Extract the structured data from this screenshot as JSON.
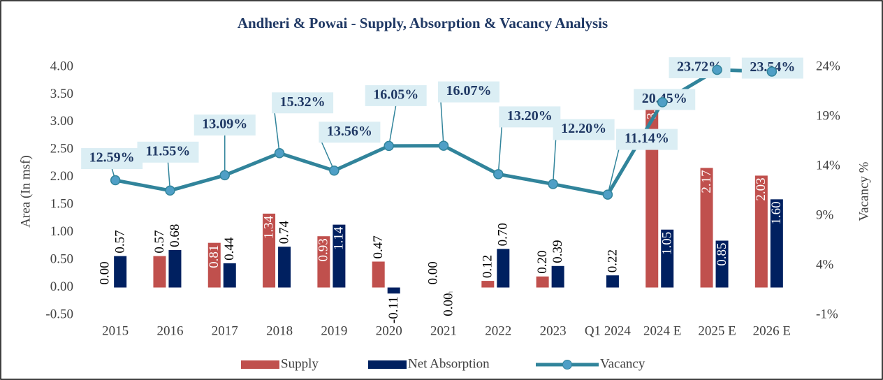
{
  "chart_data": {
    "type": "bar-line",
    "title": "Andheri & Powai - Supply, Absorption & Vacancy Analysis",
    "y_label": "Area (In msf)",
    "y2_label": "Vacancy %",
    "categories": [
      "2015",
      "2016",
      "2017",
      "2018",
      "2019",
      "2020",
      "2021",
      "2022",
      "2023",
      "Q1 2024",
      "2024 E",
      "2025 E",
      "2026 E"
    ],
    "series": [
      {
        "name": "Supply",
        "type": "bar",
        "color": "#c0504d",
        "values": [
          0.0,
          0.57,
          0.81,
          1.34,
          0.93,
          0.47,
          0.0,
          0.12,
          0.2,
          null,
          3.51,
          2.17,
          2.03
        ],
        "value_labels": [
          "0.00",
          "0.57",
          "0.81",
          "1.34",
          "0.93",
          "0.47",
          "0.00",
          "0.12",
          "0.20",
          null,
          "3.51",
          "2.17",
          "2.03"
        ]
      },
      {
        "name": "Net Absorption",
        "type": "bar",
        "color": "#002060",
        "values": [
          0.57,
          0.68,
          0.44,
          0.74,
          1.14,
          -0.11,
          0.0,
          0.7,
          0.39,
          0.22,
          1.05,
          0.85,
          1.6
        ],
        "value_labels": [
          "0.57",
          "0.68",
          "0.44",
          "0.74",
          "1.14",
          "-0.11",
          "0.00",
          "0.70",
          "0.39",
          "0.22",
          "1.05",
          "0.85",
          "1.60"
        ]
      },
      {
        "name": "Vacancy",
        "type": "line",
        "axis": "y2",
        "color": "#31849b",
        "values": [
          12.59,
          11.55,
          13.09,
          15.32,
          13.56,
          16.05,
          16.07,
          13.2,
          12.2,
          11.14,
          20.45,
          23.72,
          23.54
        ],
        "value_labels": [
          "12.59%",
          "11.55%",
          "13.09%",
          "15.32%",
          "13.56%",
          "16.05%",
          "16.07%",
          "13.20%",
          "12.20%",
          "11.14%",
          "20.45%",
          "23.72%",
          "23.54%"
        ]
      }
    ],
    "ylim": [
      -0.5,
      4.0
    ],
    "yticks": [
      {
        "value": -0.5,
        "label": "-0.50"
      },
      {
        "value": 0,
        "label": "0.00"
      },
      {
        "value": 0.5,
        "label": "0.50"
      },
      {
        "value": 1,
        "label": "1.00"
      },
      {
        "value": 1.5,
        "label": "1.50"
      },
      {
        "value": 2,
        "label": "2.00"
      },
      {
        "value": 2.5,
        "label": "2.50"
      },
      {
        "value": 3,
        "label": "3.00"
      },
      {
        "value": 3.5,
        "label": "3.50"
      },
      {
        "value": 4,
        "label": "4.00"
      }
    ],
    "y2lim": [
      -1,
      24
    ],
    "y2ticks": [
      {
        "value": -1,
        "label": "-1%"
      },
      {
        "value": 4,
        "label": "4%"
      },
      {
        "value": 9,
        "label": "9%"
      },
      {
        "value": 14,
        "label": "14%"
      },
      {
        "value": 19,
        "label": "19%"
      },
      {
        "value": 24,
        "label": "24%"
      }
    ],
    "legend": "bottom"
  }
}
